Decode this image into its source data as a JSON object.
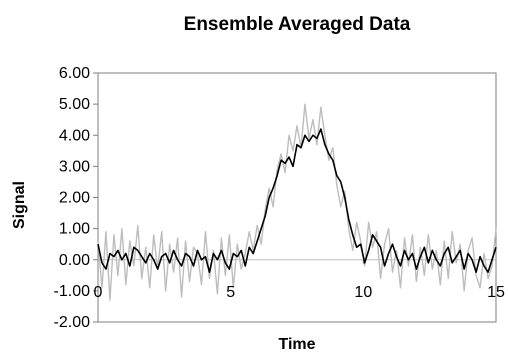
{
  "chart_data": {
    "type": "line",
    "title": "Ensemble Averaged Data",
    "xlabel": "Time",
    "ylabel": "Signal",
    "xlim": [
      0,
      15
    ],
    "ylim": [
      -2,
      6
    ],
    "x_ticks": [
      0,
      5,
      10,
      15
    ],
    "x_tick_labels": [
      "0",
      "5",
      "10",
      "15"
    ],
    "y_ticks": [
      6,
      5,
      4,
      3,
      2,
      1,
      0,
      -1,
      -2
    ],
    "y_tick_labels": [
      "6.00",
      "5.00",
      "4.00",
      "3.00",
      "2.00",
      "1.00",
      "0.00",
      "-1.00",
      "-2.00"
    ],
    "grid": false,
    "zero_line": true,
    "colors": {
      "average": "#000000",
      "raw": "#bdbdbd",
      "zero_line": "#bfbfbf",
      "axis": "#7f7f7f"
    },
    "series": [
      {
        "role": "raw",
        "x": [
          0,
          0.15,
          0.3,
          0.45,
          0.6,
          0.75,
          0.9,
          1.05,
          1.2,
          1.35,
          1.5,
          1.65,
          1.8,
          1.95,
          2.1,
          2.25,
          2.4,
          2.55,
          2.7,
          2.85,
          3,
          3.15,
          3.3,
          3.45,
          3.6,
          3.75,
          3.9,
          4.05,
          4.2,
          4.35,
          4.5,
          4.65,
          4.8,
          4.95,
          5.1,
          5.25,
          5.4,
          5.55,
          5.7,
          5.85,
          6,
          6.15,
          6.3,
          6.45,
          6.6,
          6.75,
          6.9,
          7.05,
          7.2,
          7.35,
          7.5,
          7.65,
          7.8,
          7.95,
          8.1,
          8.25,
          8.4,
          8.55,
          8.7,
          8.85,
          9,
          9.15,
          9.3,
          9.45,
          9.6,
          9.75,
          9.9,
          10.05,
          10.2,
          10.35,
          10.5,
          10.65,
          10.8,
          10.95,
          11.1,
          11.25,
          11.4,
          11.55,
          11.7,
          11.85,
          12,
          12.15,
          12.3,
          12.45,
          12.6,
          12.75,
          12.9,
          13.05,
          13.2,
          13.35,
          13.5,
          13.65,
          13.8,
          13.95,
          14.1,
          14.25,
          14.4,
          14.55,
          14.7,
          14.85,
          15
        ],
        "values": [
          0.6,
          -0.9,
          0.9,
          -1.3,
          0.8,
          -0.5,
          1.0,
          -0.8,
          0.6,
          -0.2,
          1.1,
          -0.6,
          0.4,
          -0.9,
          0.8,
          -0.3,
          0.9,
          -1.0,
          0.5,
          -0.4,
          0.7,
          -1.2,
          0.6,
          -0.7,
          0.4,
          0.2,
          -0.8,
          0.9,
          -0.6,
          0.3,
          -1.1,
          0.7,
          -0.5,
          0.8,
          -0.9,
          0.5,
          -0.3,
          0.2,
          0.9,
          0.3,
          1.1,
          0.5,
          1.6,
          2.3,
          1.7,
          2.9,
          3.4,
          2.8,
          4.0,
          3.5,
          4.3,
          3.6,
          5.0,
          3.9,
          4.5,
          3.7,
          4.9,
          4.0,
          3.2,
          3.6,
          2.4,
          1.7,
          2.2,
          1.0,
          0.3,
          1.2,
          0.6,
          -0.2,
          1.2,
          0.4,
          0.9,
          -0.6,
          0.5,
          1.0,
          -0.4,
          0.3,
          -0.9,
          0.7,
          -0.2,
          0.8,
          -0.7,
          0.4,
          -0.5,
          0.8,
          -0.3,
          0.3,
          -0.8,
          0.6,
          -0.6,
          0.9,
          -0.1,
          0.5,
          -1.0,
          0.3,
          0.7,
          -0.5,
          -0.9,
          0.2,
          -0.6,
          -0.2,
          1.0
        ]
      },
      {
        "role": "average",
        "x": [
          0,
          0.15,
          0.3,
          0.45,
          0.6,
          0.75,
          0.9,
          1.05,
          1.2,
          1.35,
          1.5,
          1.65,
          1.8,
          1.95,
          2.1,
          2.25,
          2.4,
          2.55,
          2.7,
          2.85,
          3,
          3.15,
          3.3,
          3.45,
          3.6,
          3.75,
          3.9,
          4.05,
          4.2,
          4.35,
          4.5,
          4.65,
          4.8,
          4.95,
          5.1,
          5.25,
          5.4,
          5.55,
          5.7,
          5.85,
          6,
          6.15,
          6.3,
          6.45,
          6.6,
          6.75,
          6.9,
          7.05,
          7.2,
          7.35,
          7.5,
          7.65,
          7.8,
          7.95,
          8.1,
          8.25,
          8.4,
          8.55,
          8.7,
          8.85,
          9,
          9.15,
          9.3,
          9.45,
          9.6,
          9.75,
          9.9,
          10.05,
          10.2,
          10.35,
          10.5,
          10.65,
          10.8,
          10.95,
          11.1,
          11.25,
          11.4,
          11.55,
          11.7,
          11.85,
          12,
          12.15,
          12.3,
          12.45,
          12.6,
          12.75,
          12.9,
          13.05,
          13.2,
          13.35,
          13.5,
          13.65,
          13.8,
          13.95,
          14.1,
          14.25,
          14.4,
          14.55,
          14.7,
          14.85,
          15
        ],
        "values": [
          0.5,
          -0.1,
          -0.3,
          0.2,
          0.1,
          0.3,
          0.0,
          0.2,
          -0.2,
          0.4,
          0.3,
          0.1,
          -0.1,
          0.2,
          0.0,
          -0.3,
          0.1,
          0.2,
          -0.1,
          0.3,
          0.0,
          -0.2,
          0.2,
          0.1,
          -0.2,
          0.3,
          0.0,
          0.1,
          -0.4,
          0.2,
          0.0,
          0.3,
          -0.1,
          -0.3,
          0.2,
          0.1,
          0.3,
          -0.2,
          0.4,
          0.2,
          0.6,
          1.0,
          1.4,
          2.0,
          2.3,
          2.7,
          3.2,
          3.1,
          3.3,
          3.0,
          3.7,
          3.6,
          4.0,
          3.8,
          4.0,
          3.9,
          4.2,
          3.7,
          3.4,
          3.2,
          2.7,
          2.5,
          2.0,
          1.3,
          0.8,
          0.4,
          0.5,
          -0.1,
          0.3,
          0.8,
          0.6,
          0.4,
          -0.2,
          0.2,
          0.5,
          0.1,
          -0.2,
          0.3,
          0.0,
          0.2,
          -0.3,
          0.1,
          0.4,
          -0.1,
          0.3,
          0.0,
          -0.2,
          0.2,
          0.4,
          -0.1,
          0.1,
          0.3,
          -0.3,
          0.2,
          0.0,
          -0.4,
          0.1,
          -0.2,
          -0.4,
          0.0,
          0.4
        ]
      }
    ]
  }
}
